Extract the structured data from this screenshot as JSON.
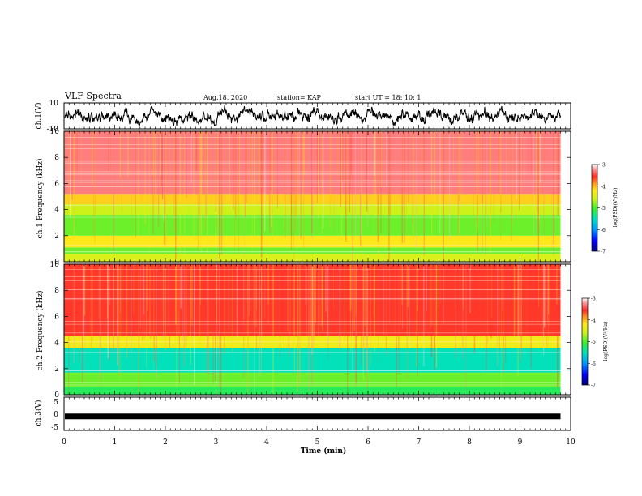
{
  "header": {
    "title": "VLF Spectra",
    "date": "Aug.18, 2020",
    "station": "station= KAP",
    "start_ut": "start UT =   18: 10: 1"
  },
  "chart_data": [
    {
      "type": "line",
      "panel": "ch1-waveform",
      "ylabel": "ch.1(V)",
      "ylim": [
        -10,
        10
      ],
      "yticks": [
        "10",
        "-10"
      ],
      "xlim": [
        0,
        10
      ],
      "extent_min": 9.8,
      "color": "#000000"
    },
    {
      "type": "heatmap",
      "panel": "ch1-spectrogram",
      "ylabel": "ch.1 Frequency (kHz)",
      "ylim": [
        0,
        10
      ],
      "yticks": [
        "0",
        "2",
        "4",
        "6",
        "8",
        "10"
      ],
      "xlim": [
        0,
        10
      ],
      "extent_min": 9.8,
      "colorbar": {
        "label": "log(PSD)(V²/Hz)",
        "range": [
          -7,
          -3
        ],
        "ticks": [
          "-3",
          "-4",
          "-5",
          "-6",
          "-7"
        ]
      },
      "bands": [
        {
          "f0": 0.0,
          "f1": 0.6,
          "level": -4.5
        },
        {
          "f0": 0.6,
          "f1": 1.1,
          "level": -4.9
        },
        {
          "f0": 1.1,
          "f1": 2.0,
          "level": -4.2
        },
        {
          "f0": 2.0,
          "f1": 3.6,
          "level": -4.9
        },
        {
          "f0": 3.6,
          "f1": 4.4,
          "level": -4.6
        },
        {
          "f0": 4.4,
          "f1": 5.2,
          "level": -4.1
        },
        {
          "f0": 5.2,
          "f1": 10.0,
          "level": -3.3
        }
      ]
    },
    {
      "type": "heatmap",
      "panel": "ch2-spectrogram",
      "ylabel": "ch.2 Frequency (kHz)",
      "ylim": [
        0,
        10
      ],
      "yticks": [
        "0",
        "2",
        "4",
        "6",
        "8",
        "10"
      ],
      "xlim": [
        0,
        10
      ],
      "extent_min": 9.8,
      "colorbar": {
        "label": "log(PSD)(V²/Hz)",
        "range": [
          -7,
          -3
        ],
        "ticks": [
          "-3",
          "-4",
          "-5",
          "-6",
          "-7"
        ]
      },
      "bands": [
        {
          "f0": 0.0,
          "f1": 0.6,
          "level": -5.2
        },
        {
          "f0": 0.6,
          "f1": 1.7,
          "level": -4.9
        },
        {
          "f0": 1.7,
          "f1": 3.6,
          "level": -5.5
        },
        {
          "f0": 3.6,
          "f1": 4.5,
          "level": -4.3
        },
        {
          "f0": 4.5,
          "f1": 10.0,
          "level": -3.6
        }
      ]
    },
    {
      "type": "line",
      "panel": "ch3-waveform",
      "ylabel": "ch.3(V)",
      "ylim": [
        -5,
        5
      ],
      "yticks": [
        "5",
        "0",
        "-5"
      ],
      "xlim": [
        0,
        10
      ],
      "extent_min": 9.8,
      "level": -0.8,
      "xlabel": "Time (min)",
      "xticks": [
        "0",
        "1",
        "2",
        "3",
        "4",
        "5",
        "6",
        "7",
        "8",
        "9",
        "10"
      ]
    }
  ]
}
